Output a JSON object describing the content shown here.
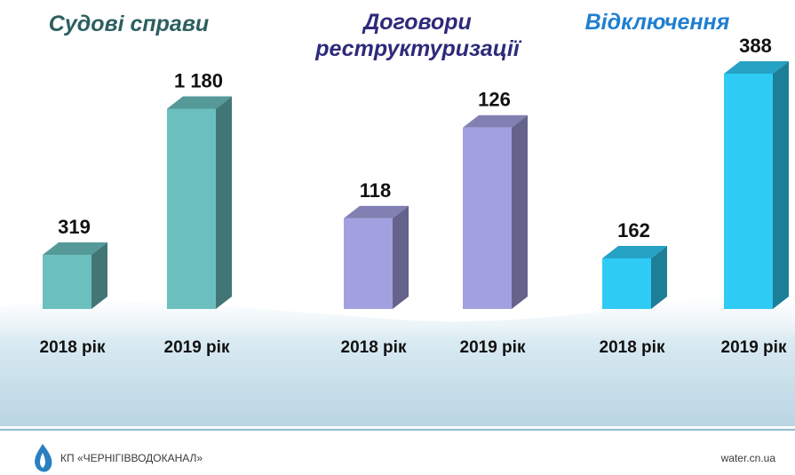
{
  "chart_data": [
    {
      "type": "bar",
      "title": "Судові справи",
      "categories": [
        "2018 рік",
        "2019 рік"
      ],
      "values": [
        319,
        1180
      ],
      "value_labels": [
        "319",
        "1 180"
      ],
      "color": "#6bbfbf",
      "title_color": "#2d5f5f",
      "ylim": [
        0,
        1570
      ]
    },
    {
      "type": "bar",
      "title": "Договори реструктуризації",
      "categories": [
        "2018 рік",
        "2019 рік"
      ],
      "values": [
        118,
        126
      ],
      "value_labels": [
        "118",
        "126"
      ],
      "color": "#a3a0e0",
      "title_color": "#2e2a7a",
      "ylim": [
        110,
        133.5
      ]
    },
    {
      "type": "bar",
      "title": "Відключення",
      "categories": [
        "2018 рік",
        "2019 рік"
      ],
      "values": [
        162,
        388
      ],
      "value_labels": [
        "162",
        "388"
      ],
      "color": "#2ecbf5",
      "title_color": "#1f7fd0",
      "ylim": [
        100,
        426
      ]
    }
  ],
  "footer": {
    "company": "КП «ЧЕРНІГІВВОДОКАНАЛ»",
    "website": "water.cn.ua"
  }
}
